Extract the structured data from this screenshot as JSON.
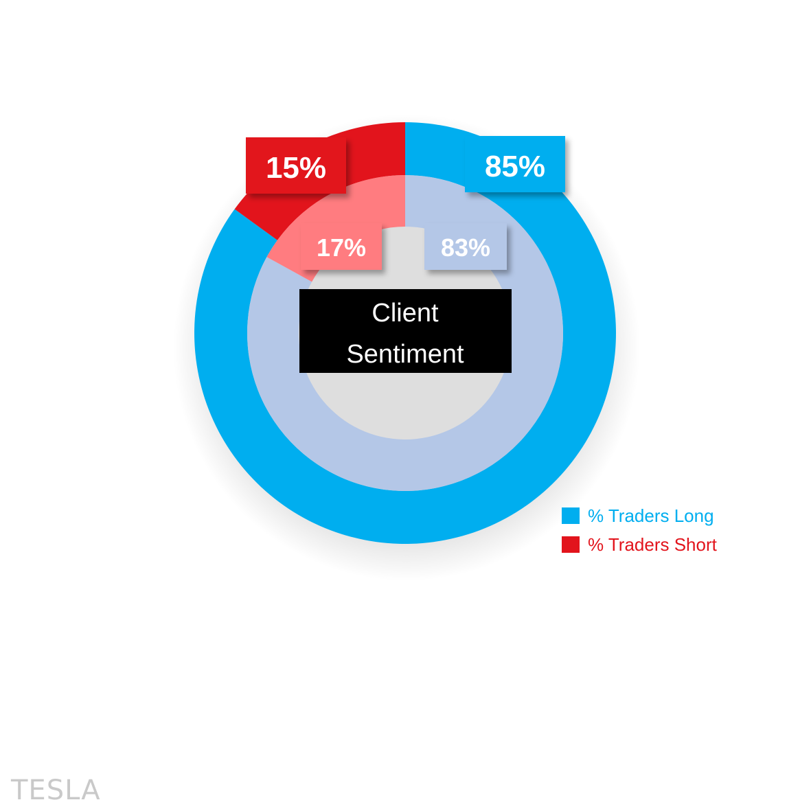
{
  "chart_data": {
    "type": "pie",
    "center_label": [
      "Client",
      "Sentiment"
    ],
    "rings": [
      {
        "ring": "outer",
        "slices": [
          {
            "name": "% Traders Long",
            "value": 85,
            "label": "85%",
            "color": "#00aeef"
          },
          {
            "name": "% Traders Short",
            "value": 15,
            "label": "15%",
            "color": "#e2141c"
          }
        ]
      },
      {
        "ring": "inner",
        "slices": [
          {
            "name": "% Traders Long",
            "value": 83,
            "label": "83%",
            "color": "#b4c7e7"
          },
          {
            "name": "% Traders Short",
            "value": 17,
            "label": "17%",
            "color": "#ff7c80"
          }
        ]
      }
    ],
    "legend": {
      "position": "bottom-right",
      "items": [
        {
          "label": "% Traders Long",
          "color": "#00aeef"
        },
        {
          "label": "% Traders Short",
          "color": "#e2141c"
        }
      ]
    }
  },
  "footer": {
    "label": "TESLA"
  }
}
